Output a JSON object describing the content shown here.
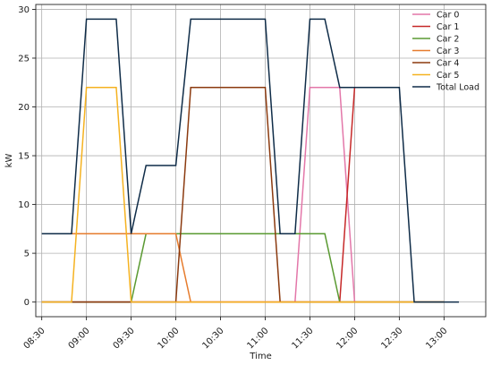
{
  "chart_data": {
    "type": "line",
    "title": "",
    "xlabel": "Time",
    "ylabel": "kW",
    "xlim": [
      "08:26",
      "13:28"
    ],
    "ylim": [
      -1.5,
      30.5
    ],
    "x_ticks": [
      "08:30",
      "09:00",
      "09:30",
      "10:00",
      "10:30",
      "11:00",
      "11:30",
      "12:00",
      "12:30",
      "13:00"
    ],
    "y_ticks": [
      0,
      5,
      10,
      15,
      20,
      25,
      30
    ],
    "grid": true,
    "legend_position": "top-right",
    "series": [
      {
        "name": "Car 0",
        "color": "#e377a9",
        "points": [
          [
            "08:30",
            0
          ],
          [
            "11:20",
            0
          ],
          [
            "11:30",
            22
          ],
          [
            "11:50",
            22
          ],
          [
            "12:00",
            0
          ],
          [
            "13:00",
            0
          ]
        ]
      },
      {
        "name": "Car 1",
        "color": "#c62828",
        "points": [
          [
            "08:30",
            0
          ],
          [
            "11:50",
            0
          ],
          [
            "12:00",
            22
          ]
        ]
      },
      {
        "name": "Car 2",
        "color": "#5a9a32",
        "points": [
          [
            "08:30",
            0
          ],
          [
            "09:30",
            0
          ],
          [
            "09:40",
            7
          ],
          [
            "11:40",
            7
          ],
          [
            "11:50",
            0
          ],
          [
            "13:00",
            0
          ]
        ]
      },
      {
        "name": "Car 3",
        "color": "#e67c2e",
        "points": [
          [
            "08:50",
            7
          ],
          [
            "10:00",
            7
          ],
          [
            "10:10",
            0
          ],
          [
            "13:00",
            0
          ]
        ]
      },
      {
        "name": "Car 4",
        "color": "#8b3a0f",
        "points": [
          [
            "08:30",
            0
          ],
          [
            "10:00",
            0
          ],
          [
            "10:10",
            22
          ],
          [
            "11:00",
            22
          ],
          [
            "11:10",
            0
          ],
          [
            "13:00",
            0
          ]
        ]
      },
      {
        "name": "Car 5",
        "color": "#f5b220",
        "points": [
          [
            "08:30",
            0
          ],
          [
            "08:50",
            0
          ],
          [
            "09:00",
            22
          ],
          [
            "09:20",
            22
          ],
          [
            "09:30",
            0
          ],
          [
            "13:00",
            0
          ]
        ]
      },
      {
        "name": "Total Load",
        "color": "#0f2c48",
        "points": [
          [
            "08:30",
            7
          ],
          [
            "08:50",
            7
          ],
          [
            "09:00",
            29
          ],
          [
            "09:20",
            29
          ],
          [
            "09:30",
            7
          ],
          [
            "09:40",
            14
          ],
          [
            "10:00",
            14
          ],
          [
            "10:10",
            29
          ],
          [
            "11:00",
            29
          ],
          [
            "11:10",
            7
          ],
          [
            "11:20",
            7
          ],
          [
            "11:30",
            29
          ],
          [
            "11:40",
            29
          ],
          [
            "11:50",
            22
          ],
          [
            "12:30",
            22
          ],
          [
            "12:40",
            0
          ],
          [
            "13:10",
            0
          ]
        ]
      }
    ]
  }
}
